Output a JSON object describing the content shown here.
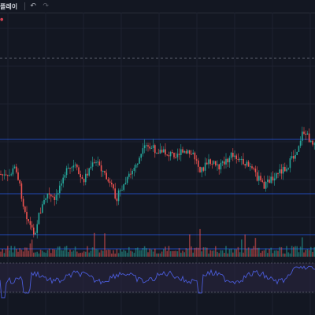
{
  "toolbar": {
    "replay_label": "플레이",
    "undo_icon": "undo-icon",
    "redo_icon": "redo-icon"
  },
  "colors": {
    "background": "#131722",
    "grid": "#1e2230",
    "up": "#26a69a",
    "down": "#ef5350",
    "level_line": "#2962ff",
    "rsi_line": "#4a5bd8",
    "rsi_band": "#2a2540",
    "dashed": "#787b86"
  },
  "chart_data": {
    "type": "candlestick",
    "price_levels": [
      0.82,
      0.35,
      0.3,
      0.22,
      0.08
    ],
    "rsi_bounds": [
      70,
      30
    ]
  }
}
